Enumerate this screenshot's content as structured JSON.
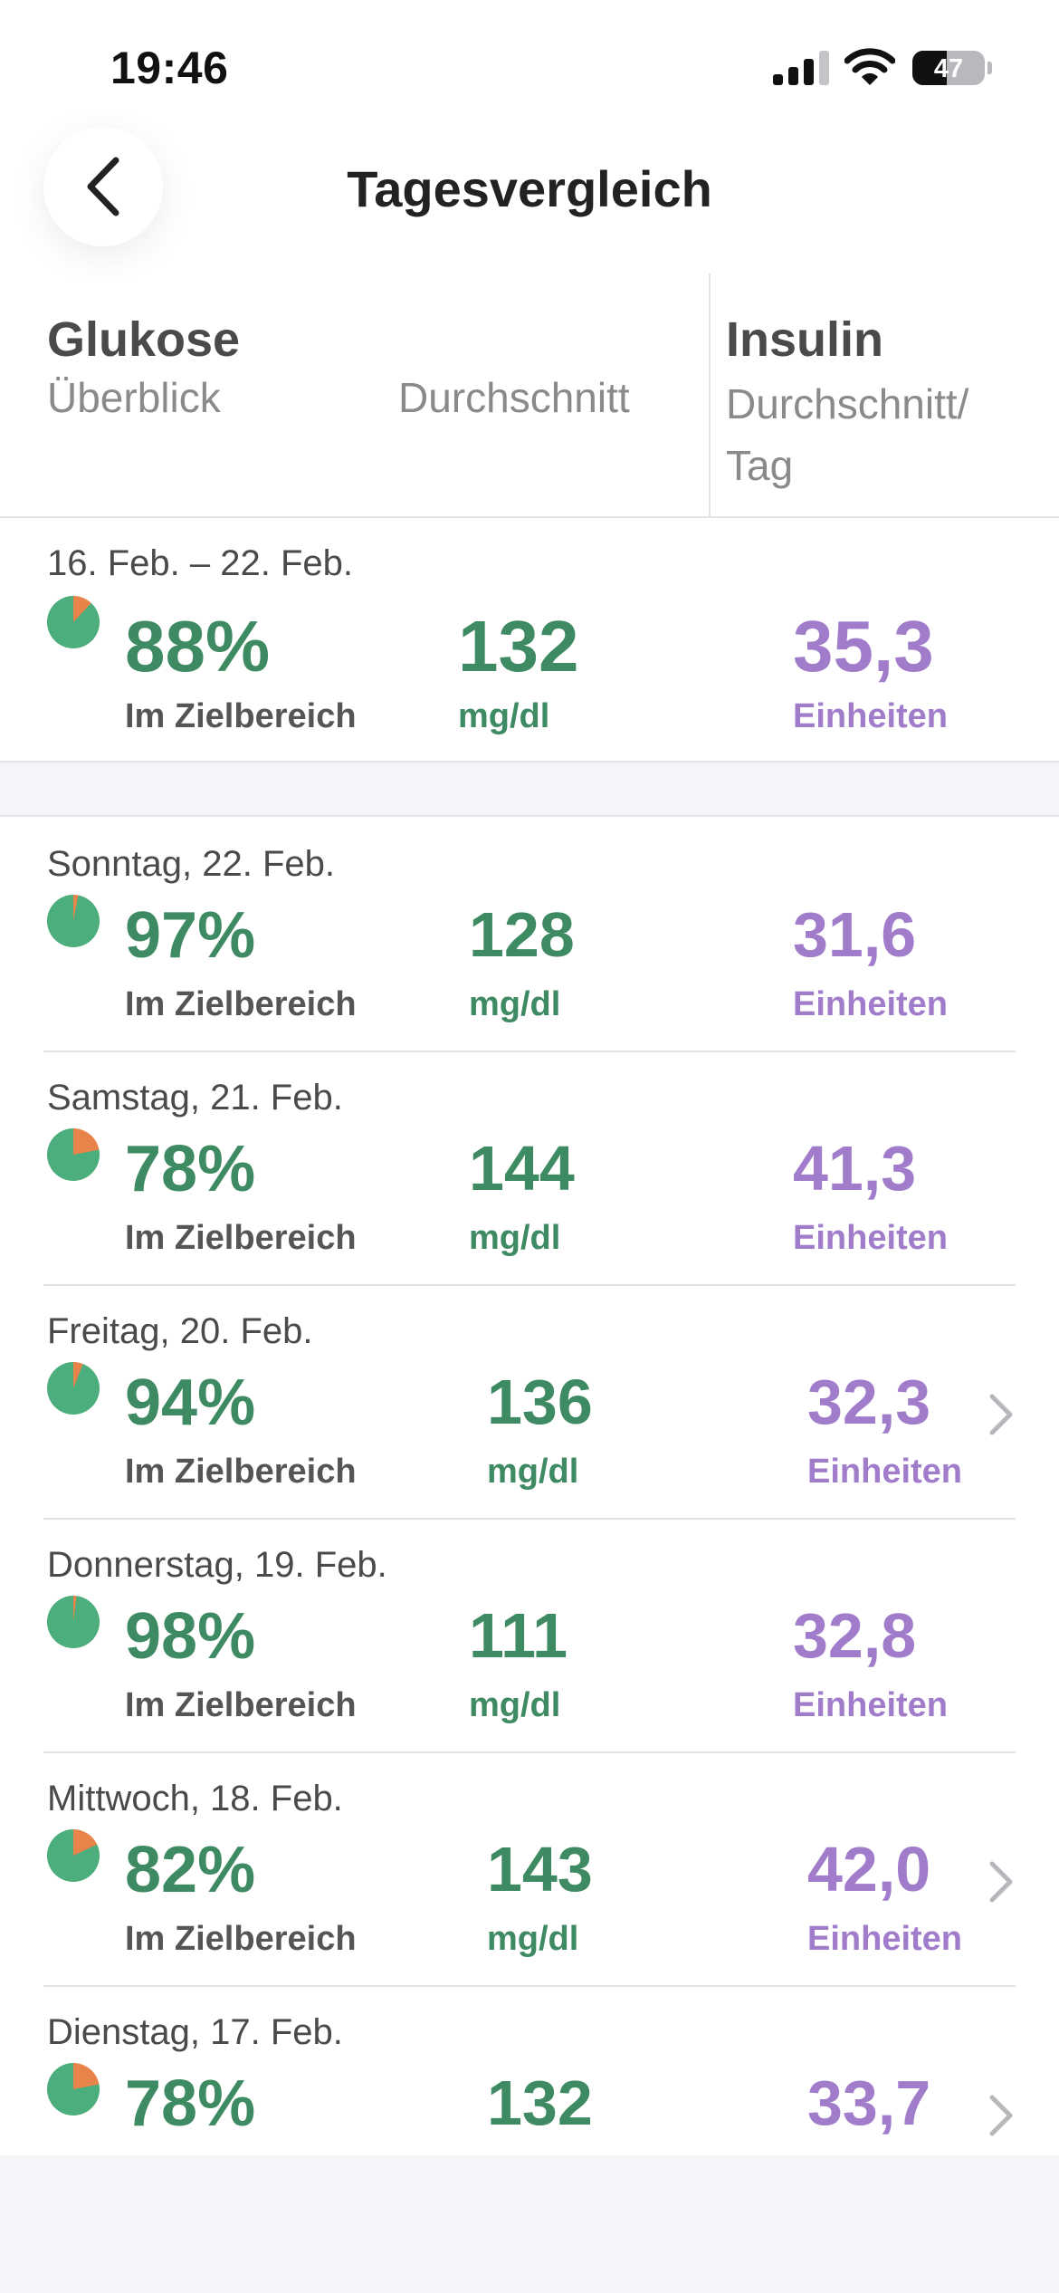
{
  "status_bar": {
    "time": "19:46",
    "battery": "47",
    "battery_level": 0.47
  },
  "nav": {
    "title": "Tagesvergleich"
  },
  "header": {
    "glucose_title": "Glukose",
    "overview_label": "Überblick",
    "average_label": "Durchschnitt",
    "insulin_title": "Insulin",
    "insulin_sub": "Durchschnitt/ Tag"
  },
  "colors": {
    "in_range": "#4cae7c",
    "out_of_range": "#e8834a",
    "glucose_value": "#3e8a62",
    "insulin_value": "#a07ccb"
  },
  "summary": {
    "range": "16. Feb. – 22. Feb.",
    "percent": "88%",
    "in_range_fraction": 0.88,
    "percent_label": "Im Zielbereich",
    "avg": "132",
    "avg_unit": "mg/dl",
    "insulin": "35,3",
    "insulin_unit": "Einheiten"
  },
  "days": [
    {
      "date": "Sonntag, 22. Feb.",
      "percent": "97%",
      "in_range_fraction": 0.97,
      "percent_label": "Im Zielbereich",
      "avg": "128",
      "avg_unit": "mg/dl",
      "insulin": "31,6",
      "insulin_unit": "Einheiten",
      "has_chevron": false
    },
    {
      "date": "Samstag, 21. Feb.",
      "percent": "78%",
      "in_range_fraction": 0.78,
      "percent_label": "Im Zielbereich",
      "avg": "144",
      "avg_unit": "mg/dl",
      "insulin": "41,3",
      "insulin_unit": "Einheiten",
      "has_chevron": false
    },
    {
      "date": "Freitag, 20. Feb.",
      "percent": "94%",
      "in_range_fraction": 0.94,
      "percent_label": "Im Zielbereich",
      "avg": "136",
      "avg_unit": "mg/dl",
      "insulin": "32,3",
      "insulin_unit": "Einheiten",
      "has_chevron": true
    },
    {
      "date": "Donnerstag, 19. Feb.",
      "percent": "98%",
      "in_range_fraction": 0.98,
      "percent_label": "Im Zielbereich",
      "avg": "111",
      "avg_unit": "mg/dl",
      "insulin": "32,8",
      "insulin_unit": "Einheiten",
      "has_chevron": false
    },
    {
      "date": "Mittwoch, 18. Feb.",
      "percent": "82%",
      "in_range_fraction": 0.82,
      "percent_label": "Im Zielbereich",
      "avg": "143",
      "avg_unit": "mg/dl",
      "insulin": "42,0",
      "insulin_unit": "Einheiten",
      "has_chevron": true
    },
    {
      "date": "Dienstag, 17. Feb.",
      "percent": "78%",
      "in_range_fraction": 0.78,
      "percent_label": "",
      "avg": "132",
      "avg_unit": "",
      "insulin": "33,7",
      "insulin_unit": "",
      "has_chevron": true
    }
  ]
}
